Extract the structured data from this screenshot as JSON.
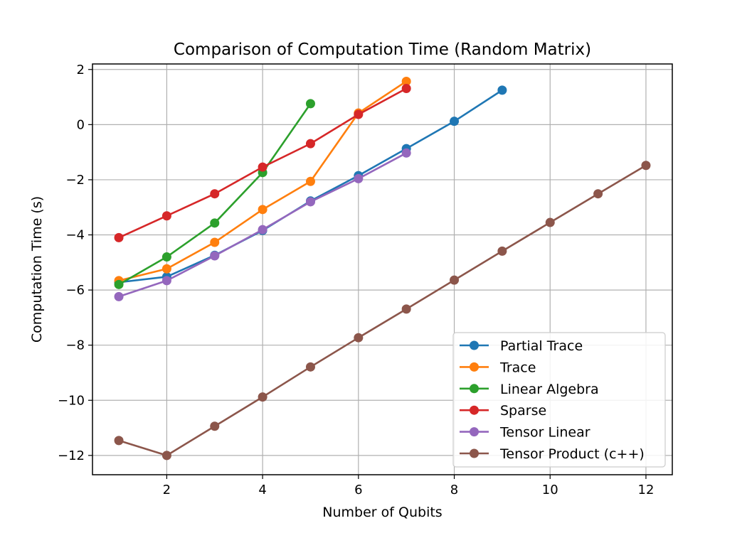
{
  "chart_data": {
    "type": "line",
    "title": "Comparison of Computation Time (Random Matrix)",
    "xlabel": "Number of Qubits",
    "ylabel": "Computation Time (s)",
    "xlim": [
      0.45,
      12.55
    ],
    "ylim": [
      -12.7,
      2.2
    ],
    "xticks": [
      2,
      4,
      6,
      8,
      10,
      12
    ],
    "xtick_labels": [
      "2",
      "4",
      "6",
      "8",
      "10",
      "12"
    ],
    "yticks": [
      2,
      0,
      -2,
      -4,
      -6,
      -8,
      -10,
      -12
    ],
    "ytick_labels": [
      "2",
      "0",
      "−2",
      "−4",
      "−6",
      "−8",
      "−10",
      "−12"
    ],
    "grid": true,
    "legend_position": "lower-right",
    "series": [
      {
        "name": "Partial Trace",
        "color": "#1f77b4",
        "x": [
          1,
          2,
          3,
          4,
          5,
          6,
          7,
          8,
          9
        ],
        "y": [
          -5.72,
          -5.52,
          -4.74,
          -3.84,
          -2.77,
          -1.85,
          -0.87,
          0.12,
          1.25
        ]
      },
      {
        "name": "Trace",
        "color": "#ff7f0e",
        "x": [
          1,
          2,
          3,
          4,
          5,
          6,
          7
        ],
        "y": [
          -5.66,
          -5.23,
          -4.27,
          -3.08,
          -2.06,
          0.42,
          1.57
        ]
      },
      {
        "name": "Linear Algebra",
        "color": "#2ca02c",
        "x": [
          1,
          2,
          3,
          4,
          5
        ],
        "y": [
          -5.8,
          -4.8,
          -3.57,
          -1.74,
          0.76
        ]
      },
      {
        "name": "Sparse",
        "color": "#d62728",
        "x": [
          1,
          2,
          3,
          4,
          5,
          6,
          7
        ],
        "y": [
          -4.1,
          -3.31,
          -2.51,
          -1.54,
          -0.69,
          0.37,
          1.31
        ]
      },
      {
        "name": "Tensor Linear",
        "color": "#9467bd",
        "x": [
          1,
          2,
          3,
          4,
          5,
          6,
          7
        ],
        "y": [
          -6.24,
          -5.66,
          -4.76,
          -3.81,
          -2.8,
          -1.96,
          -1.03
        ]
      },
      {
        "name": "Tensor Product (c++)",
        "color": "#8c564b",
        "x": [
          1,
          2,
          3,
          4,
          5,
          6,
          7,
          8,
          9,
          10,
          11,
          12
        ],
        "y": [
          -11.46,
          -12.0,
          -10.94,
          -9.88,
          -8.79,
          -7.73,
          -6.69,
          -5.64,
          -4.59,
          -3.55,
          -2.51,
          -1.48
        ]
      }
    ]
  }
}
